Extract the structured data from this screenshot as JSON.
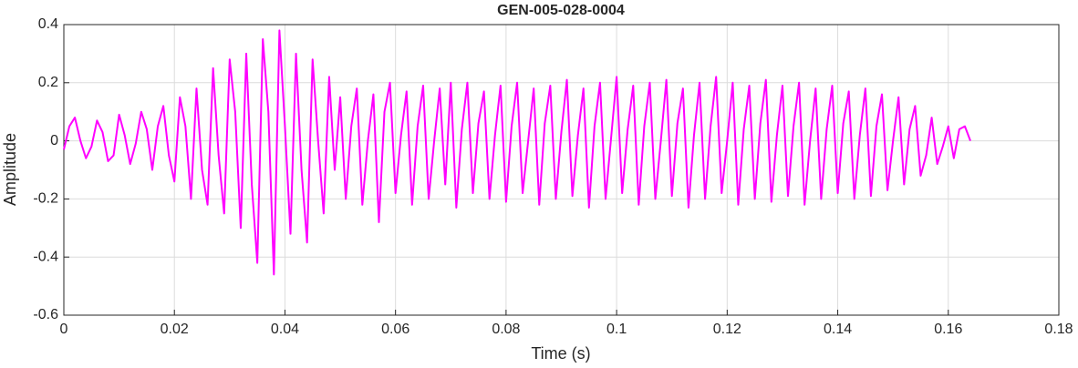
{
  "chart_data": {
    "type": "line",
    "title": "GEN-005-028-0004",
    "xlabel": "Time (s)",
    "ylabel": "Amplitude",
    "x": [
      0,
      0.001,
      0.002,
      0.003,
      0.004,
      0.005,
      0.006,
      0.007,
      0.008,
      0.009,
      0.01,
      0.011,
      0.012,
      0.013,
      0.014,
      0.015,
      0.016,
      0.017,
      0.018,
      0.019,
      0.02,
      0.021,
      0.022,
      0.023,
      0.024,
      0.025,
      0.026,
      0.027,
      0.028,
      0.029,
      0.03,
      0.031,
      0.032,
      0.033,
      0.034,
      0.035,
      0.036,
      0.037,
      0.038,
      0.039,
      0.04,
      0.041,
      0.042,
      0.043,
      0.044,
      0.045,
      0.046,
      0.047,
      0.048,
      0.049,
      0.05,
      0.051,
      0.052,
      0.053,
      0.054,
      0.055,
      0.056,
      0.057,
      0.058,
      0.059,
      0.06,
      0.061,
      0.062,
      0.063,
      0.064,
      0.065,
      0.066,
      0.067,
      0.068,
      0.069,
      0.07,
      0.071,
      0.072,
      0.073,
      0.074,
      0.075,
      0.076,
      0.077,
      0.078,
      0.079,
      0.08,
      0.081,
      0.082,
      0.083,
      0.084,
      0.085,
      0.086,
      0.087,
      0.088,
      0.089,
      0.09,
      0.091,
      0.092,
      0.093,
      0.094,
      0.095,
      0.096,
      0.097,
      0.098,
      0.099,
      0.1,
      0.101,
      0.102,
      0.103,
      0.104,
      0.105,
      0.106,
      0.107,
      0.108,
      0.109,
      0.11,
      0.111,
      0.112,
      0.113,
      0.114,
      0.115,
      0.116,
      0.117,
      0.118,
      0.119,
      0.12,
      0.121,
      0.122,
      0.123,
      0.124,
      0.125,
      0.126,
      0.127,
      0.128,
      0.129,
      0.13,
      0.131,
      0.132,
      0.133,
      0.134,
      0.135,
      0.136,
      0.137,
      0.138,
      0.139,
      0.14,
      0.141,
      0.142,
      0.143,
      0.144,
      0.145,
      0.146,
      0.147,
      0.148,
      0.149,
      0.15,
      0.151,
      0.152,
      0.153,
      0.154,
      0.155,
      0.156,
      0.157,
      0.158,
      0.159,
      0.16,
      0.161,
      0.162,
      0.163,
      0.164
    ],
    "series": [
      {
        "color": "#ff00ff",
        "values": [
          -0.03,
          0.05,
          0.08,
          0.0,
          -0.06,
          -0.02,
          0.07,
          0.03,
          -0.07,
          -0.05,
          0.09,
          0.02,
          -0.08,
          -0.01,
          0.1,
          0.04,
          -0.1,
          0.05,
          0.12,
          -0.05,
          -0.14,
          0.15,
          0.05,
          -0.2,
          0.18,
          -0.1,
          -0.22,
          0.25,
          -0.05,
          -0.25,
          0.28,
          0.1,
          -0.3,
          0.3,
          -0.15,
          -0.42,
          0.35,
          0.1,
          -0.46,
          0.38,
          0.05,
          -0.32,
          0.3,
          -0.1,
          -0.35,
          0.28,
          0.0,
          -0.25,
          0.22,
          -0.1,
          0.15,
          -0.2,
          0.05,
          0.18,
          -0.22,
          0.0,
          0.16,
          -0.28,
          0.1,
          0.2,
          -0.18,
          0.02,
          0.17,
          -0.22,
          0.05,
          0.19,
          -0.2,
          0.0,
          0.18,
          -0.15,
          0.2,
          -0.23,
          0.04,
          0.2,
          -0.18,
          0.06,
          0.17,
          -0.2,
          0.02,
          0.19,
          -0.21,
          0.05,
          0.2,
          -0.18,
          0.0,
          0.18,
          -0.22,
          0.06,
          0.19,
          -0.2,
          0.03,
          0.21,
          -0.19,
          0.02,
          0.18,
          -0.23,
          0.05,
          0.2,
          -0.2,
          0.01,
          0.22,
          -0.18,
          0.04,
          0.19,
          -0.22,
          0.05,
          0.2,
          -0.2,
          0.0,
          0.21,
          -0.19,
          0.06,
          0.18,
          -0.23,
          0.02,
          0.2,
          -0.2,
          0.05,
          0.22,
          -0.18,
          0.0,
          0.2,
          -0.22,
          0.04,
          0.19,
          -0.2,
          0.06,
          0.21,
          -0.21,
          0.02,
          0.19,
          -0.19,
          0.05,
          0.2,
          -0.22,
          0.0,
          0.18,
          -0.2,
          0.04,
          0.19,
          -0.18,
          0.06,
          0.17,
          -0.2,
          0.02,
          0.18,
          -0.19,
          0.05,
          0.16,
          -0.17,
          0.0,
          0.15,
          -0.15,
          0.04,
          0.12,
          -0.12,
          -0.05,
          0.08,
          -0.08,
          -0.02,
          0.05,
          -0.06,
          0.04,
          0.05,
          0.0
        ]
      }
    ],
    "xlim": [
      0,
      0.18
    ],
    "xticks": [
      0,
      0.02,
      0.04,
      0.06,
      0.08,
      0.1,
      0.12,
      0.14,
      0.16,
      0.18
    ],
    "ylim": [
      -0.6,
      0.4
    ],
    "yticks": [
      -0.6,
      -0.4,
      -0.2,
      0,
      0.2,
      0.4
    ],
    "grid": true
  }
}
